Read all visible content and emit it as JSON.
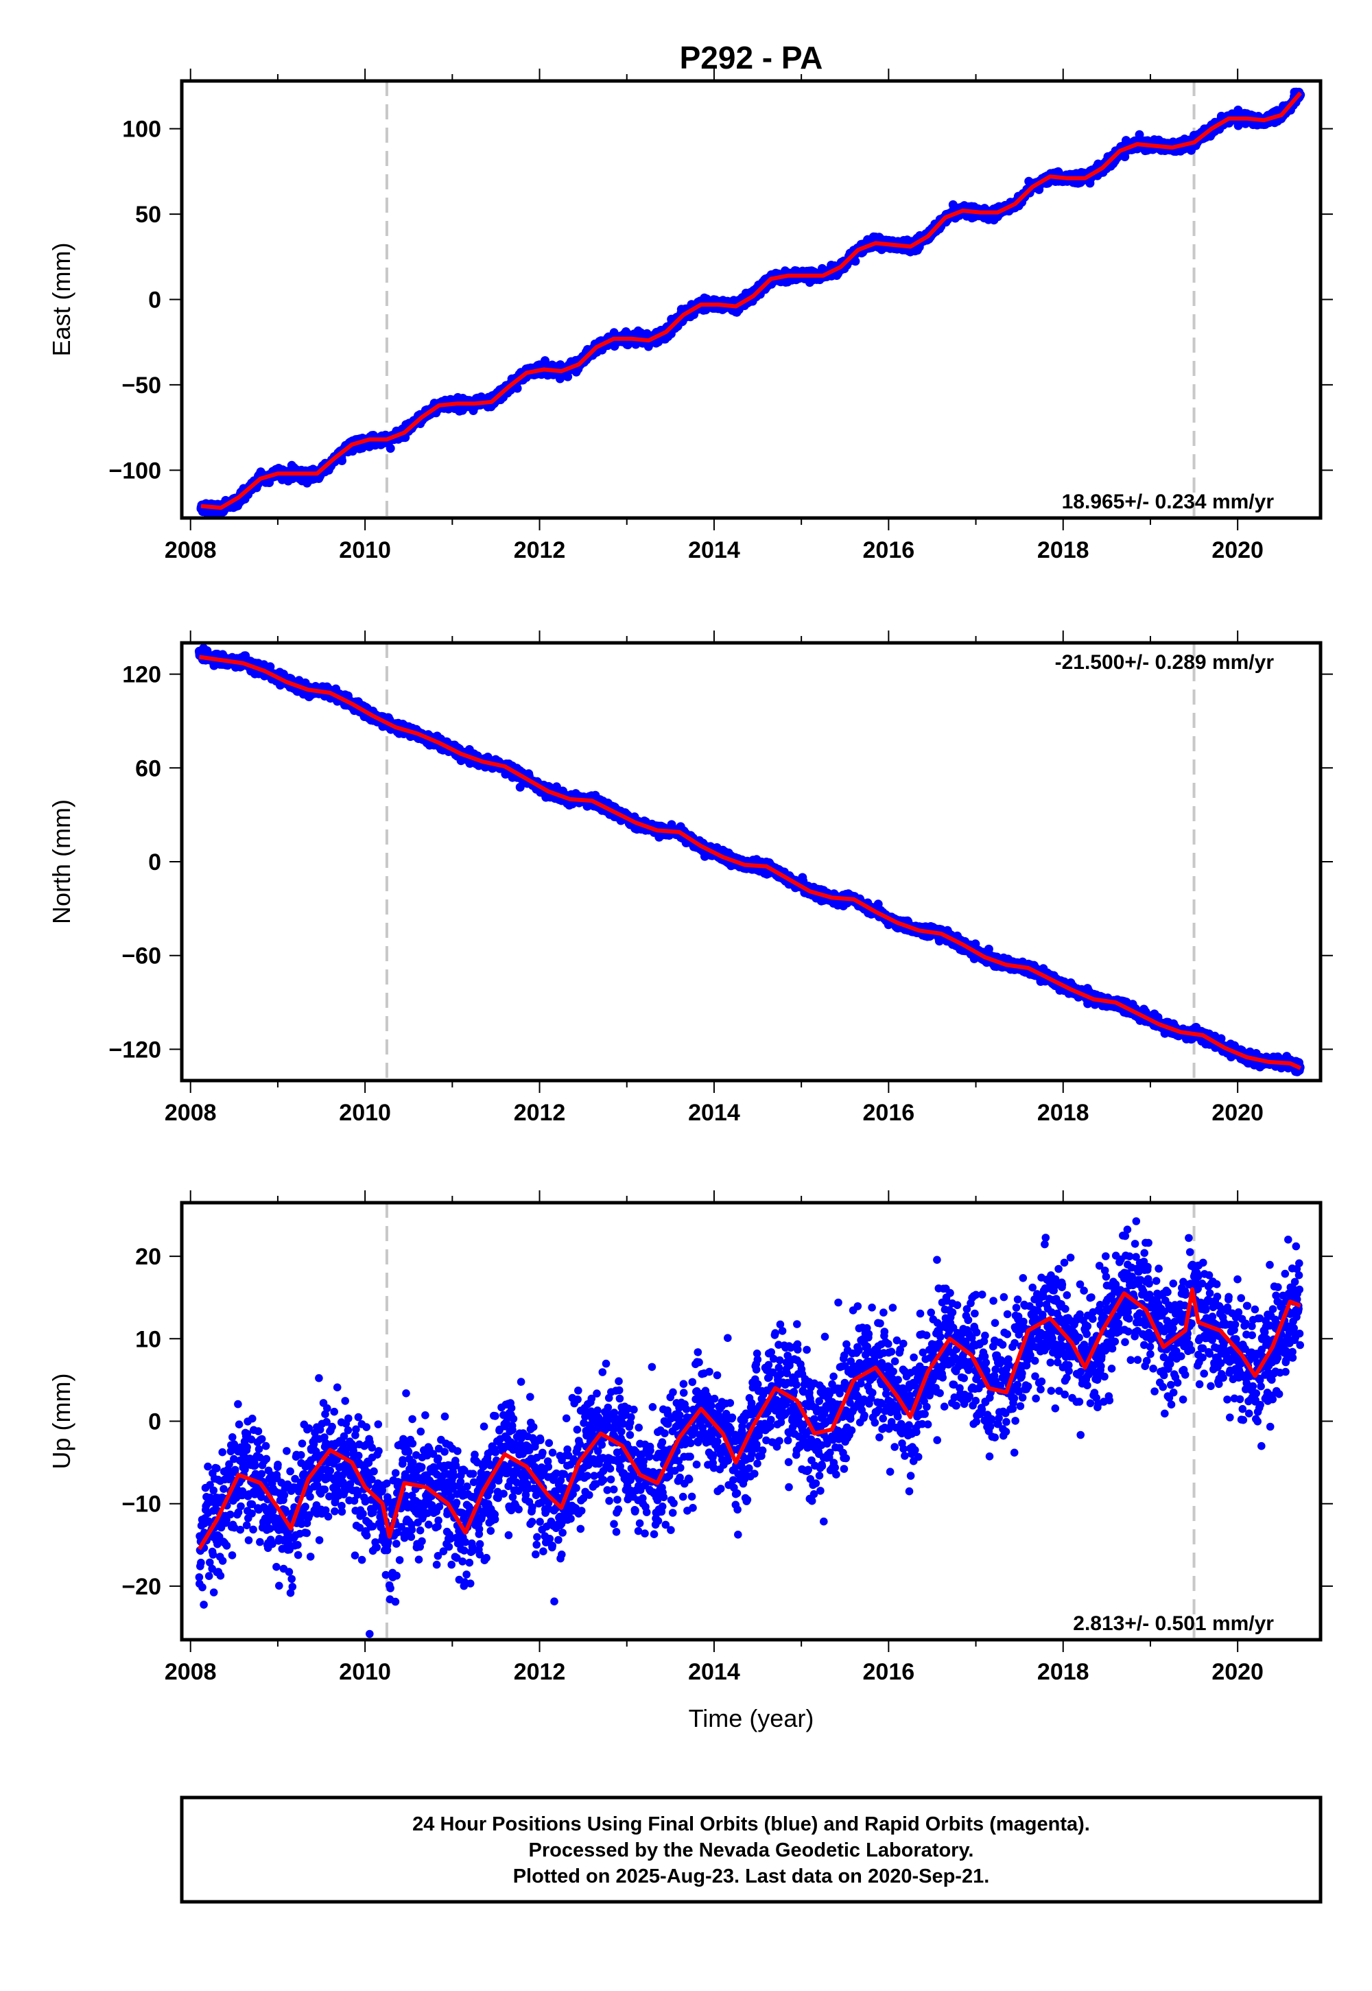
{
  "title": "P292 - PA",
  "footer": {
    "line1": "24 Hour Positions Using Final Orbits (blue) and Rapid Orbits (magenta).",
    "line2": "Processed by the Nevada Geodetic Laboratory.",
    "line3": "Plotted on 2025-Aug-23. Last data on 2020-Sep-21."
  },
  "xlabel": "Time (year)",
  "colors": {
    "final_orbits": "#0000ff",
    "model": "#ff0000",
    "event_lines": "#c8c8c8"
  },
  "chart_data": [
    {
      "type": "scatter",
      "ylabel": "East (mm)",
      "rate_label": "18.965+/- 0.234 mm/yr",
      "xlim": [
        2007.9,
        2020.95
      ],
      "ylim": [
        -128,
        128
      ],
      "xticks": [
        2008,
        2010,
        2012,
        2014,
        2016,
        2018,
        2020
      ],
      "yticks": [
        -100,
        -50,
        0,
        50,
        100
      ],
      "ytick_labels": [
        "−100",
        "−50",
        "0",
        "50",
        "100"
      ],
      "event_lines_x": [
        2010.25,
        2019.5
      ],
      "series": [
        {
          "role": "data",
          "color": "#0000ff",
          "noise": 1.5,
          "x": [
            2008.12,
            2008.35,
            2008.55,
            2008.8,
            2009.0,
            2009.2,
            2009.45,
            2009.65,
            2009.85,
            2010.05,
            2010.25,
            2010.45,
            2010.65,
            2010.85,
            2011.05,
            2011.25,
            2011.45,
            2011.65,
            2011.85,
            2012.05,
            2012.25,
            2012.45,
            2012.65,
            2012.85,
            2013.05,
            2013.25,
            2013.45,
            2013.65,
            2013.85,
            2014.05,
            2014.25,
            2014.45,
            2014.65,
            2014.85,
            2015.05,
            2015.25,
            2015.45,
            2015.65,
            2015.85,
            2016.05,
            2016.25,
            2016.45,
            2016.65,
            2016.85,
            2017.05,
            2017.25,
            2017.45,
            2017.65,
            2017.85,
            2018.05,
            2018.25,
            2018.45,
            2018.65,
            2018.85,
            2019.05,
            2019.25,
            2019.5,
            2019.7,
            2019.9,
            2020.1,
            2020.3,
            2020.5,
            2020.72
          ],
          "y": [
            -121,
            -123,
            -117,
            -105,
            -102,
            -102,
            -103,
            -94,
            -85,
            -82,
            -82,
            -78,
            -69,
            -62,
            -61,
            -61,
            -60,
            -51,
            -43,
            -41,
            -42,
            -38,
            -28,
            -23,
            -23,
            -24,
            -19,
            -9,
            -3,
            -3,
            -4,
            2,
            12,
            14,
            14,
            14,
            19,
            29,
            33,
            32,
            31,
            37,
            48,
            52,
            51,
            51,
            56,
            66,
            72,
            71,
            71,
            77,
            87,
            91,
            90,
            89,
            92,
            100,
            106,
            106,
            105,
            108,
            121
          ]
        },
        {
          "role": "model",
          "color": "#ff0000",
          "x": [
            2008.12,
            2008.35,
            2008.55,
            2008.8,
            2009.0,
            2009.2,
            2009.45,
            2009.65,
            2009.85,
            2010.05,
            2010.25,
            2010.45,
            2010.65,
            2010.85,
            2011.05,
            2011.25,
            2011.45,
            2011.65,
            2011.85,
            2012.05,
            2012.25,
            2012.45,
            2012.65,
            2012.85,
            2013.05,
            2013.25,
            2013.45,
            2013.65,
            2013.85,
            2014.05,
            2014.25,
            2014.45,
            2014.65,
            2014.85,
            2015.05,
            2015.25,
            2015.45,
            2015.65,
            2015.85,
            2016.05,
            2016.25,
            2016.45,
            2016.65,
            2016.85,
            2017.05,
            2017.25,
            2017.45,
            2017.65,
            2017.85,
            2018.05,
            2018.25,
            2018.45,
            2018.65,
            2018.85,
            2019.05,
            2019.25,
            2019.5,
            2019.7,
            2019.9,
            2020.1,
            2020.3,
            2020.5,
            2020.72
          ],
          "y": [
            -121,
            -122,
            -116,
            -105,
            -102,
            -102,
            -102,
            -93,
            -85,
            -82,
            -82,
            -78,
            -69,
            -62,
            -61,
            -61,
            -60,
            -51,
            -43,
            -41,
            -42,
            -38,
            -28,
            -23,
            -23,
            -24,
            -19,
            -9,
            -3,
            -3,
            -4,
            2,
            12,
            14,
            14,
            14,
            19,
            29,
            33,
            32,
            31,
            37,
            48,
            52,
            51,
            51,
            56,
            66,
            72,
            71,
            71,
            77,
            87,
            91,
            90,
            89,
            92,
            100,
            106,
            106,
            105,
            108,
            121
          ]
        }
      ]
    },
    {
      "type": "scatter",
      "ylabel": "North (mm)",
      "rate_label": "-21.500+/- 0.289 mm/yr",
      "xlim": [
        2007.9,
        2020.95
      ],
      "ylim": [
        -140,
        140
      ],
      "xticks": [
        2008,
        2010,
        2012,
        2014,
        2016,
        2018,
        2020
      ],
      "yticks": [
        -120,
        -60,
        0,
        60,
        120
      ],
      "ytick_labels": [
        "−120",
        "−60",
        "0",
        "60",
        "120"
      ],
      "event_lines_x": [
        2010.25,
        2019.5
      ],
      "series": [
        {
          "role": "data",
          "color": "#0000ff",
          "noise": 1.6,
          "x": [
            2008.1,
            2008.35,
            2008.6,
            2008.85,
            2009.1,
            2009.35,
            2009.6,
            2009.85,
            2010.1,
            2010.35,
            2010.6,
            2010.85,
            2011.1,
            2011.35,
            2011.6,
            2011.85,
            2012.1,
            2012.35,
            2012.6,
            2012.85,
            2013.1,
            2013.35,
            2013.6,
            2013.85,
            2014.1,
            2014.35,
            2014.6,
            2014.85,
            2015.1,
            2015.35,
            2015.6,
            2015.85,
            2016.1,
            2016.35,
            2016.6,
            2016.85,
            2017.1,
            2017.35,
            2017.6,
            2017.85,
            2018.1,
            2018.35,
            2018.6,
            2018.85,
            2019.1,
            2019.35,
            2019.6,
            2019.85,
            2020.1,
            2020.35,
            2020.6,
            2020.72
          ],
          "y": [
            132,
            129,
            128,
            122,
            115,
            110,
            108,
            101,
            93,
            86,
            82,
            76,
            69,
            64,
            61,
            53,
            45,
            40,
            39,
            32,
            25,
            20,
            19,
            10,
            3,
            -2,
            -3,
            -11,
            -19,
            -23,
            -24,
            -32,
            -39,
            -44,
            -46,
            -53,
            -61,
            -66,
            -68,
            -75,
            -82,
            -88,
            -90,
            -97,
            -104,
            -109,
            -111,
            -119,
            -125,
            -128,
            -129,
            -133
          ]
        },
        {
          "role": "model",
          "color": "#ff0000",
          "x": [
            2008.1,
            2008.35,
            2008.6,
            2008.85,
            2009.1,
            2009.35,
            2009.6,
            2009.85,
            2010.1,
            2010.35,
            2010.6,
            2010.85,
            2011.1,
            2011.35,
            2011.6,
            2011.85,
            2012.1,
            2012.35,
            2012.6,
            2012.85,
            2013.1,
            2013.35,
            2013.6,
            2013.85,
            2014.1,
            2014.35,
            2014.6,
            2014.85,
            2015.1,
            2015.35,
            2015.6,
            2015.85,
            2016.1,
            2016.35,
            2016.6,
            2016.85,
            2017.1,
            2017.35,
            2017.6,
            2017.85,
            2018.1,
            2018.35,
            2018.6,
            2018.85,
            2019.1,
            2019.35,
            2019.6,
            2019.85,
            2020.1,
            2020.35,
            2020.6,
            2020.72
          ],
          "y": [
            131,
            129,
            127,
            122,
            115,
            110,
            108,
            101,
            93,
            86,
            82,
            76,
            69,
            64,
            61,
            53,
            45,
            40,
            39,
            32,
            25,
            20,
            19,
            10,
            3,
            -2,
            -3,
            -11,
            -19,
            -23,
            -24,
            -32,
            -39,
            -44,
            -46,
            -53,
            -61,
            -66,
            -68,
            -75,
            -82,
            -88,
            -90,
            -97,
            -104,
            -109,
            -111,
            -119,
            -125,
            -128,
            -129,
            -132
          ]
        }
      ]
    },
    {
      "type": "scatter",
      "ylabel": "Up (mm)",
      "rate_label": "2.813+/- 0.501 mm/yr",
      "xlim": [
        2007.9,
        2020.95
      ],
      "ylim": [
        -26.5,
        26.5
      ],
      "xticks": [
        2008,
        2010,
        2012,
        2014,
        2016,
        2018,
        2020
      ],
      "yticks": [
        -20,
        -10,
        0,
        10,
        20
      ],
      "ytick_labels": [
        "−20",
        "−10",
        "0",
        "10",
        "20"
      ],
      "event_lines_x": [
        2010.25,
        2019.5
      ],
      "series": [
        {
          "role": "data",
          "color": "#0000ff",
          "noise": 3.6,
          "x": [
            2008.1,
            2008.3,
            2008.55,
            2008.8,
            2009.0,
            2009.15,
            2009.35,
            2009.6,
            2009.85,
            2010.0,
            2010.2,
            2010.28,
            2010.45,
            2010.7,
            2010.95,
            2011.15,
            2011.35,
            2011.6,
            2011.85,
            2012.1,
            2012.25,
            2012.45,
            2012.7,
            2012.95,
            2013.15,
            2013.35,
            2013.6,
            2013.85,
            2014.1,
            2014.25,
            2014.45,
            2014.7,
            2014.95,
            2015.15,
            2015.35,
            2015.6,
            2015.85,
            2016.1,
            2016.25,
            2016.45,
            2016.7,
            2016.95,
            2017.15,
            2017.35,
            2017.6,
            2017.85,
            2018.1,
            2018.25,
            2018.45,
            2018.7,
            2018.95,
            2019.15,
            2019.4,
            2019.48,
            2019.55,
            2019.8,
            2020.05,
            2020.2,
            2020.4,
            2020.6,
            2020.72
          ],
          "y": [
            -15.5,
            -12,
            -6.5,
            -7.5,
            -10.5,
            -13,
            -7,
            -3.5,
            -5,
            -8,
            -10,
            -14,
            -7.5,
            -8,
            -10,
            -13.5,
            -8.5,
            -4,
            -5.5,
            -9,
            -10.5,
            -5,
            -1.5,
            -3,
            -6.5,
            -7.5,
            -2,
            1.5,
            -1.5,
            -5,
            -0.5,
            4,
            2.5,
            -1.5,
            -1,
            5,
            6.5,
            3,
            0.5,
            6,
            10,
            8,
            4,
            3.5,
            11,
            12.5,
            9.5,
            6.5,
            11,
            15.5,
            13.5,
            9,
            11,
            16,
            12,
            11,
            8,
            5.5,
            9,
            14.5,
            14
          ]
        },
        {
          "role": "model",
          "color": "#ff0000",
          "x": [
            2008.1,
            2008.3,
            2008.55,
            2008.8,
            2009.0,
            2009.15,
            2009.35,
            2009.6,
            2009.85,
            2010.0,
            2010.2,
            2010.28,
            2010.45,
            2010.7,
            2010.95,
            2011.15,
            2011.35,
            2011.6,
            2011.85,
            2012.1,
            2012.25,
            2012.45,
            2012.7,
            2012.95,
            2013.15,
            2013.35,
            2013.6,
            2013.85,
            2014.1,
            2014.25,
            2014.45,
            2014.7,
            2014.95,
            2015.15,
            2015.35,
            2015.6,
            2015.85,
            2016.1,
            2016.25,
            2016.45,
            2016.7,
            2016.95,
            2017.15,
            2017.35,
            2017.6,
            2017.85,
            2018.1,
            2018.25,
            2018.45,
            2018.7,
            2018.95,
            2019.15,
            2019.4,
            2019.48,
            2019.55,
            2019.8,
            2020.05,
            2020.2,
            2020.4,
            2020.6,
            2020.72
          ],
          "y": [
            -15.5,
            -12,
            -6.5,
            -7.5,
            -10.5,
            -13,
            -7,
            -3.5,
            -5,
            -8,
            -10,
            -14,
            -7.5,
            -8,
            -10,
            -13.5,
            -8.5,
            -4,
            -5.5,
            -9,
            -10.5,
            -5,
            -1.5,
            -3,
            -6.5,
            -7.5,
            -2,
            1.5,
            -1.5,
            -5,
            -0.5,
            4,
            2.5,
            -1.5,
            -1,
            5,
            6.5,
            3,
            0.5,
            6,
            10,
            8,
            4,
            3.5,
            11,
            12.5,
            9.5,
            6.5,
            11,
            15.5,
            13.5,
            9,
            11,
            16,
            12,
            11,
            8,
            5.5,
            9,
            14.5,
            14
          ]
        }
      ]
    }
  ]
}
